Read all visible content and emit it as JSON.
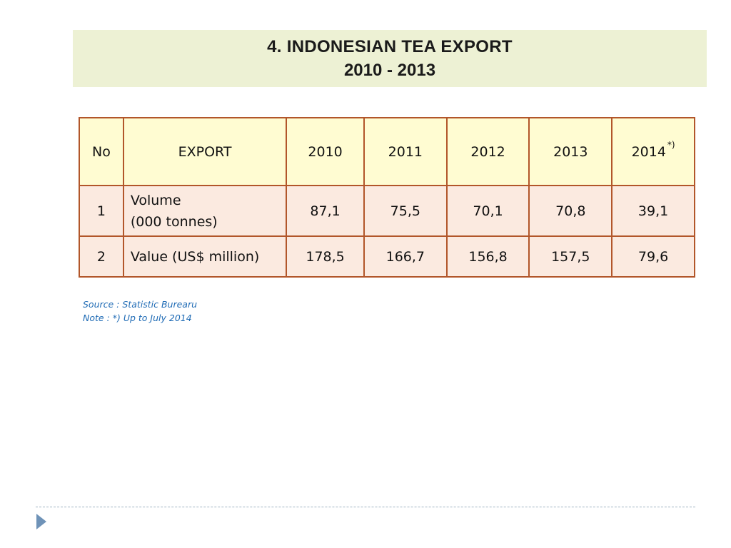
{
  "title": {
    "line1": "4. INDONESIAN TEA EXPORT",
    "line2": "2010 - 2013"
  },
  "table": {
    "headers": [
      "No",
      "EXPORT",
      "2010",
      "2011",
      "2012",
      "2013",
      "2014"
    ],
    "header_note_mark": "*)",
    "rows": [
      {
        "no": "1",
        "label_line1": "Volume",
        "label_line2": "(000  tonnes)",
        "values": [
          "87,1",
          "75,5",
          "70,1",
          "70,8",
          "39,1"
        ]
      },
      {
        "no": "2",
        "label_line1": "Value (US$ million)",
        "values": [
          "178,5",
          "166,7",
          "156,8",
          "157,5",
          "79,6"
        ]
      }
    ]
  },
  "notes": {
    "source": "Source : Statistic Burearu",
    "note": "Note :  *) Up to July 2014"
  },
  "colors": {
    "title_bg": "#EDF1D4",
    "header_bg": "#FFFCD2",
    "row_bg": "#FBEAE0",
    "border": "#B2562A",
    "note_text": "#1F6BB5",
    "nav_arrow": "#6F93B8"
  },
  "icons": {
    "nav": "triangle-right-icon"
  }
}
